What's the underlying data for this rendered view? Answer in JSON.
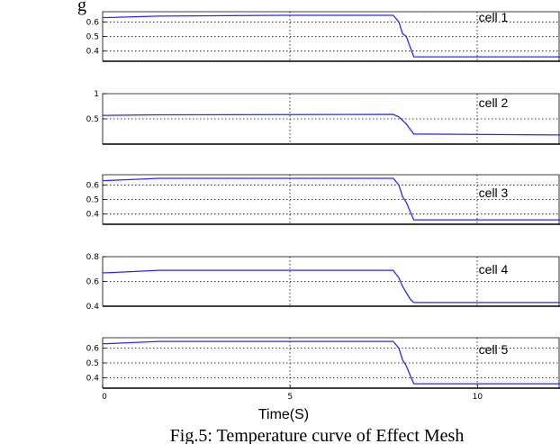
{
  "header": {
    "title_fragment": "g"
  },
  "caption": {
    "text": "Fig.5: Temperature curve of Effect Mesh"
  },
  "chart_data": {
    "type": "line",
    "xlabel": "Time(S)",
    "xlim": [
      0,
      12.2
    ],
    "xticks": [
      0,
      5,
      10
    ],
    "xtick_labels": [
      "0",
      "5",
      "10"
    ],
    "panels": [
      {
        "label": "cell 1",
        "ylim": [
          0.33,
          0.67
        ],
        "yticks": [
          0.4,
          0.5,
          0.6
        ],
        "ytick_labels": [
          "0.4",
          "0.5",
          "0.6"
        ],
        "series": {
          "x": [
            0,
            0.1,
            1.5,
            4.8,
            7.75,
            7.9,
            8.0,
            8.1,
            8.2,
            8.3,
            12.2
          ],
          "y": [
            0.63,
            0.63,
            0.64,
            0.645,
            0.645,
            0.6,
            0.52,
            0.5,
            0.43,
            0.36,
            0.36
          ]
        }
      },
      {
        "label": "cell 2",
        "ylim": [
          0.0,
          1.0
        ],
        "yticks": [
          0.5,
          1
        ],
        "ytick_labels": [
          "0.5",
          "1"
        ],
        "series": {
          "x": [
            0,
            0.1,
            1.5,
            7.75,
            7.9,
            8.0,
            8.1,
            8.2,
            8.3,
            12.2
          ],
          "y": [
            0.57,
            0.57,
            0.58,
            0.59,
            0.54,
            0.47,
            0.4,
            0.3,
            0.2,
            0.18
          ]
        }
      },
      {
        "label": "cell 3",
        "ylim": [
          0.33,
          0.67
        ],
        "yticks": [
          0.4,
          0.5,
          0.6
        ],
        "ytick_labels": [
          "0.4",
          "0.5",
          "0.6"
        ],
        "series": {
          "x": [
            0,
            0.1,
            1.5,
            7.75,
            7.9,
            8.0,
            8.1,
            8.2,
            8.3,
            12.2
          ],
          "y": [
            0.63,
            0.63,
            0.645,
            0.645,
            0.6,
            0.52,
            0.48,
            0.42,
            0.36,
            0.36
          ]
        }
      },
      {
        "label": "cell 4",
        "ylim": [
          0.4,
          0.8
        ],
        "yticks": [
          0.4,
          0.6,
          0.8
        ],
        "ytick_labels": [
          "0.4",
          "0.6",
          "0.8"
        ],
        "series": {
          "x": [
            0,
            0.1,
            1.5,
            7.75,
            7.9,
            8.0,
            8.1,
            8.2,
            8.3,
            12.2
          ],
          "y": [
            0.67,
            0.67,
            0.69,
            0.69,
            0.63,
            0.56,
            0.51,
            0.46,
            0.43,
            0.43
          ]
        }
      },
      {
        "label": "cell 5",
        "ylim": [
          0.33,
          0.67
        ],
        "yticks": [
          0.4,
          0.5,
          0.6
        ],
        "ytick_labels": [
          "0.4",
          "0.5",
          "0.6"
        ],
        "series": {
          "x": [
            0,
            0.1,
            1.5,
            7.75,
            7.9,
            8.0,
            8.1,
            8.2,
            8.3,
            12.2
          ],
          "y": [
            0.63,
            0.63,
            0.645,
            0.645,
            0.6,
            0.52,
            0.48,
            0.42,
            0.36,
            0.36
          ]
        }
      }
    ]
  }
}
